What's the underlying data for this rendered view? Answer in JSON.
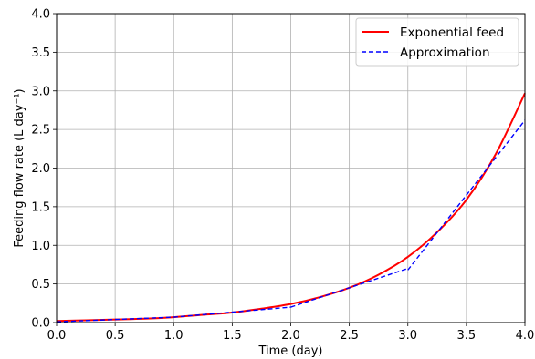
{
  "chart_data": {
    "type": "line",
    "xlabel": "Time (day)",
    "ylabel": "Feeding flow rate (L day⁻¹)",
    "xlim": [
      0,
      4
    ],
    "ylim": [
      0,
      4
    ],
    "xticks": [
      "0.0",
      "0.5",
      "1.0",
      "1.5",
      "2.0",
      "2.5",
      "3.0",
      "3.5",
      "4.0"
    ],
    "yticks": [
      "0.0",
      "0.5",
      "1.0",
      "1.5",
      "2.0",
      "2.5",
      "3.0",
      "3.5",
      "4.0"
    ],
    "grid": true,
    "legend_position": "top-right",
    "series": [
      {
        "name": "Exponential feed",
        "color": "#ff0000",
        "style": "solid",
        "x": [
          0,
          0.25,
          0.5,
          0.75,
          1.0,
          1.25,
          1.5,
          1.75,
          2.0,
          2.25,
          2.5,
          2.75,
          3.0,
          3.25,
          3.5,
          3.75,
          4.0
        ],
        "y": [
          0.02,
          0.03,
          0.04,
          0.05,
          0.07,
          0.1,
          0.13,
          0.18,
          0.24,
          0.33,
          0.45,
          0.62,
          0.85,
          1.17,
          1.59,
          2.18,
          2.97
        ]
      },
      {
        "name": "Approximation",
        "color": "#0000ff",
        "style": "dashed",
        "segments": [
          {
            "x": [
              0,
              1.0,
              2.0
            ],
            "y": [
              0.01,
              0.07,
              0.2
            ]
          },
          {
            "x": [
              2.0,
              2.5,
              3.0
            ],
            "y": [
              0.2,
              0.45,
              0.7
            ]
          },
          {
            "x": [
              3.0,
              3.5,
              4.0
            ],
            "y": [
              0.68,
              1.65,
              2.62
            ]
          }
        ]
      }
    ]
  }
}
